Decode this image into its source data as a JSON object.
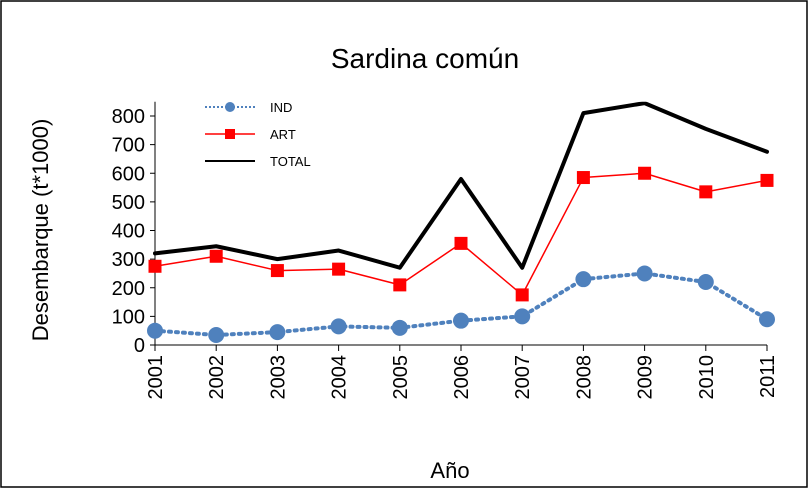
{
  "chart_data": {
    "type": "line",
    "title": "Sardina común",
    "x_label": "Año",
    "y_label": "Desembarque (t*1000)",
    "categories": [
      "2001",
      "2002",
      "2003",
      "2004",
      "2005",
      "2006",
      "2007",
      "2008",
      "2009",
      "2010",
      "2011"
    ],
    "series": [
      {
        "name": "IND",
        "color": "#4f81bd",
        "values": [
          50,
          35,
          45,
          65,
          60,
          85,
          100,
          230,
          250,
          220,
          90
        ]
      },
      {
        "name": "ART",
        "color": "#ff0000",
        "values": [
          275,
          310,
          260,
          265,
          210,
          355,
          175,
          585,
          600,
          535,
          575
        ]
      },
      {
        "name": "TOTAL",
        "color": "#000000",
        "values": [
          320,
          345,
          300,
          330,
          270,
          580,
          270,
          810,
          845,
          755,
          675
        ]
      }
    ],
    "ylim": [
      0,
      850
    ],
    "yticks": [
      0,
      100,
      200,
      300,
      400,
      500,
      600,
      700,
      800
    ],
    "legend": "upper left",
    "grid": false
  }
}
